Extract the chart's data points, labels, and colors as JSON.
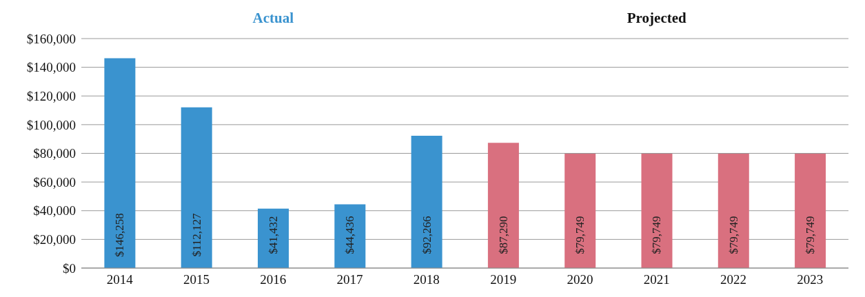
{
  "chart_data": {
    "type": "bar",
    "categories": [
      "2014",
      "2015",
      "2016",
      "2017",
      "2018",
      "2019",
      "2020",
      "2021",
      "2022",
      "2023"
    ],
    "values": [
      146258,
      112127,
      41432,
      44436,
      92266,
      87290,
      79749,
      79749,
      79749,
      79749
    ],
    "value_labels": [
      "$146,258",
      "$112,127",
      "$41,432",
      "$44,436",
      "$92,266",
      "$87,290",
      "$79,749",
      "$79,749",
      "$79,749",
      "$79,749"
    ],
    "colors": [
      "#3a93cf",
      "#3a93cf",
      "#3a93cf",
      "#3a93cf",
      "#3a93cf",
      "#d9707f",
      "#d9707f",
      "#d9707f",
      "#d9707f",
      "#d9707f"
    ],
    "ylim": [
      0,
      160000
    ],
    "yticks": [
      {
        "value": 0,
        "label": "$0"
      },
      {
        "value": 20000,
        "label": "$20,000"
      },
      {
        "value": 40000,
        "label": "$40,000"
      },
      {
        "value": 60000,
        "label": "$60,000"
      },
      {
        "value": 80000,
        "label": "$80,000"
      },
      {
        "value": 100000,
        "label": "$100,000"
      },
      {
        "value": 120000,
        "label": "$120,000"
      },
      {
        "value": 140000,
        "label": "$140,000"
      },
      {
        "value": 160000,
        "label": "$160,000"
      }
    ],
    "grid": "y",
    "legend": false,
    "annotations": [
      "Actual",
      "Projected"
    ]
  }
}
